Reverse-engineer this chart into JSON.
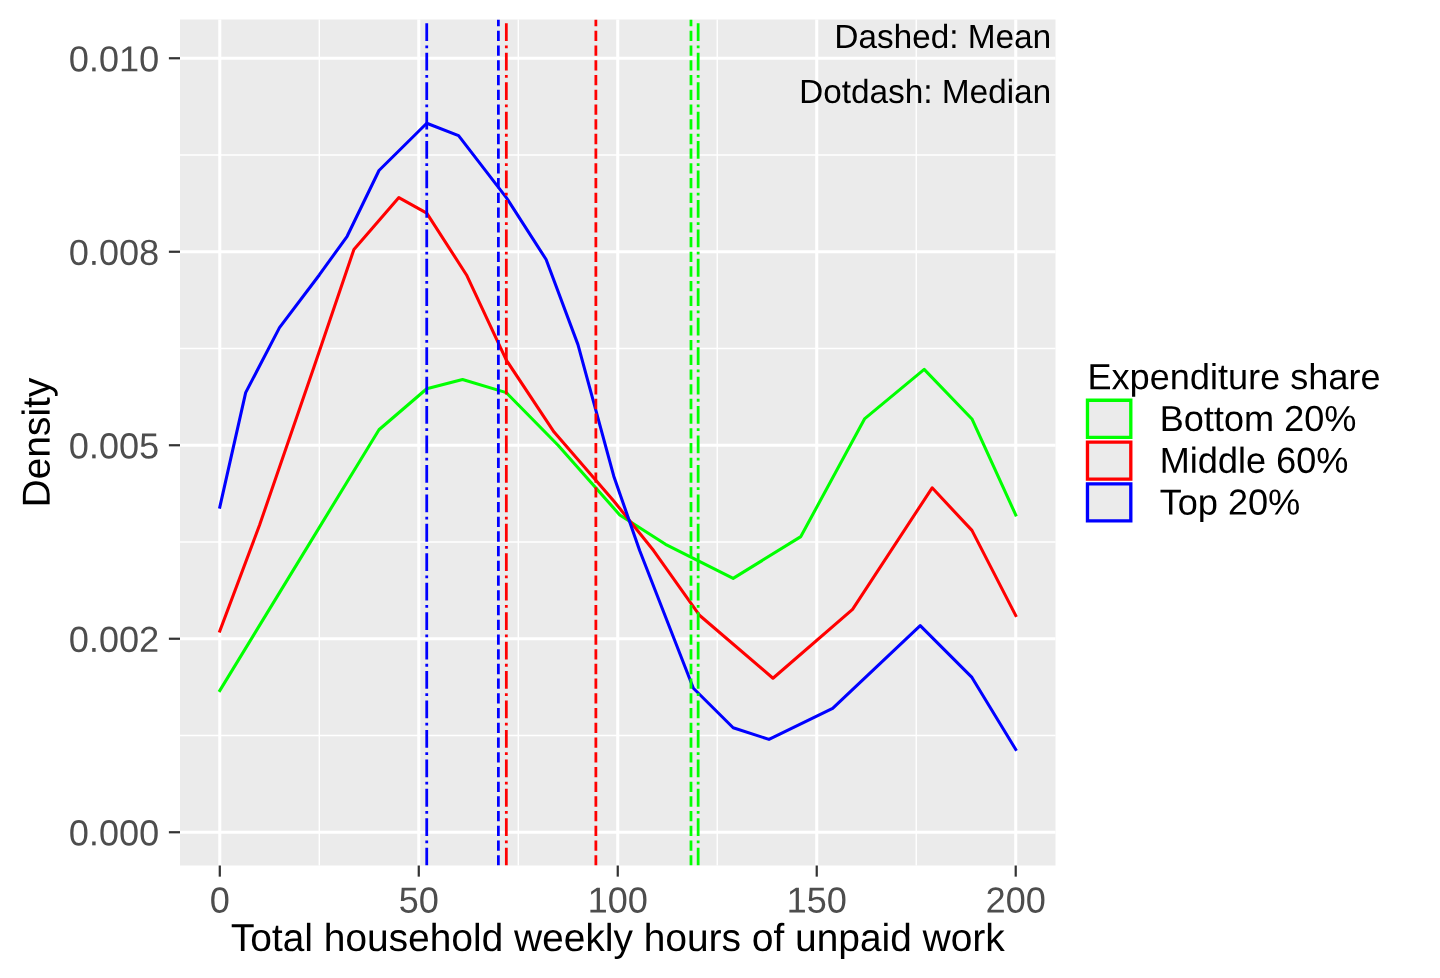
{
  "chart_data": {
    "type": "line",
    "xlabel": "Total household weekly hours of unpaid work",
    "ylabel": "Density",
    "legend_title": "Expenditure share",
    "series": [
      {
        "name": "Bottom 20%",
        "color": "#00ff00",
        "x": [
          0,
          23.6,
          40,
          52,
          61,
          72,
          85,
          100.5,
          112,
          129,
          146,
          162,
          177,
          189,
          200
        ],
        "values": [
          0.00183,
          0.00382,
          0.0052,
          0.00573,
          0.00585,
          0.00568,
          0.005,
          0.0041,
          0.00372,
          0.00328,
          0.00382,
          0.00534,
          0.00598,
          0.00534,
          0.0041
        ]
      },
      {
        "name": "Middle 60%",
        "color": "#ff0000",
        "x": [
          0,
          10,
          23.6,
          33.7,
          45,
          52,
          62,
          72,
          84,
          99,
          109,
          120.6,
          139,
          159,
          179,
          189,
          200
        ],
        "values": [
          0.0026,
          0.00397,
          0.006,
          0.00753,
          0.0082,
          0.008,
          0.0072,
          0.0061,
          0.00517,
          0.00428,
          0.00364,
          0.0028,
          0.00199,
          0.00288,
          0.00445,
          0.0039,
          0.0028
        ]
      },
      {
        "name": "Top 20%",
        "color": "#0000ff",
        "x": [
          0,
          6.5,
          15,
          25,
          32,
          40,
          52,
          60,
          72,
          82,
          90,
          99,
          105.5,
          119,
          129,
          138,
          154,
          176,
          189,
          200
        ],
        "values": [
          0.0042,
          0.00568,
          0.00652,
          0.0072,
          0.0077,
          0.00855,
          0.00916,
          0.009,
          0.0082,
          0.0074,
          0.0063,
          0.0046,
          0.00364,
          0.00186,
          0.00135,
          0.0012,
          0.0016,
          0.00267,
          0.002,
          0.00107
        ]
      }
    ],
    "xlim": [
      -10,
      210
    ],
    "xticks": [
      0,
      50,
      100,
      150,
      200
    ],
    "ylim": [
      -0.00043,
      0.0105
    ],
    "yticks": [
      {
        "value": 0,
        "label": "0.000"
      },
      {
        "value": 0.0025,
        "label": "0.002"
      },
      {
        "value": 0.005,
        "label": "0.005"
      },
      {
        "value": 0.0075,
        "label": "0.008"
      },
      {
        "value": 0.01,
        "label": "0.010"
      }
    ],
    "ref_lines": [
      {
        "axis": "x",
        "value": 52,
        "color": "#0000ff",
        "line_style": "dashdot"
      },
      {
        "axis": "x",
        "value": 70,
        "color": "#0000ff",
        "line_style": "dashed"
      },
      {
        "axis": "x",
        "value": 72,
        "color": "#ff0000",
        "line_style": "dashdot"
      },
      {
        "axis": "x",
        "value": 94.5,
        "color": "#ff0000",
        "line_style": "dashed"
      },
      {
        "axis": "x",
        "value": 118.4,
        "color": "#00ff00",
        "line_style": "dashed"
      },
      {
        "axis": "x",
        "value": 120.2,
        "color": "#00ff00",
        "line_style": "dashdot"
      }
    ],
    "annotations": [
      "Dashed: Mean",
      "Dotdash: Median"
    ],
    "grid": true,
    "legend": "right",
    "line_style": "solid",
    "marker": "none"
  }
}
